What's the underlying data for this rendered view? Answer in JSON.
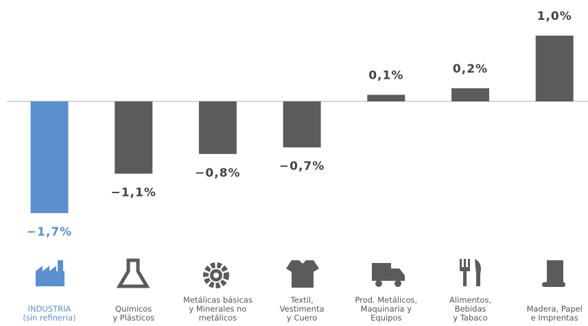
{
  "chart_data": {
    "type": "bar",
    "categories": [
      "INDUSTRIA\n(sin refinería)",
      "Químicos\ny Plásticos",
      "Metálicas básicas\ny Minerales no\nmetálicos",
      "Textil,\nVestimenta\ny Cuero",
      "Prod. Metálicos,\nMaquinaria y\nEquipos",
      "Alimentos,\nBebidas\ny Tabaco",
      "Madera, Papel\ne Imprentas"
    ],
    "values": [
      -1.7,
      -1.1,
      -0.8,
      -0.7,
      0.1,
      0.2,
      1.0
    ],
    "value_labels": [
      "−1,7%",
      "−1,1%",
      "−0,8%",
      "−0,7%",
      "0,1%",
      "0,2%",
      "1,0%"
    ],
    "colors": [
      "#5b8fcf",
      "#5b5b59",
      "#5b5b59",
      "#5b5b59",
      "#5b5b59",
      "#5b5b59",
      "#5b5b59"
    ]
  }
}
